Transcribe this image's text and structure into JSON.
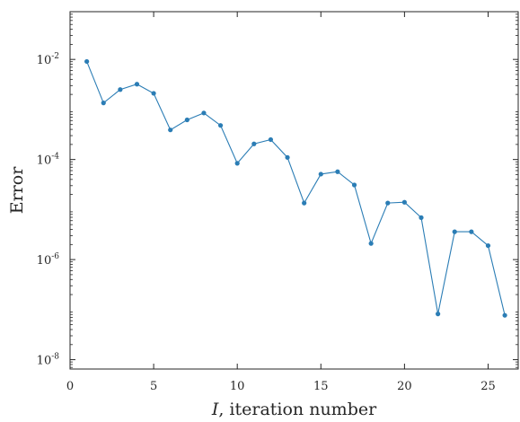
{
  "chart_data": {
    "type": "line",
    "xlabel_var": "I",
    "xlabel_rest": ", iteration number",
    "ylabel": "Error",
    "y_scale": "log",
    "xlim": [
      0,
      26.8
    ],
    "ylim": [
      6.5e-09,
      0.09
    ],
    "x_ticks": [
      0,
      5,
      10,
      15,
      20,
      25
    ],
    "x_tick_labels": [
      "0",
      "5",
      "10",
      "15",
      "20",
      "25"
    ],
    "y_ticks": [
      1e-08,
      1e-06,
      0.0001,
      0.01
    ],
    "y_tick_labels": [
      {
        "base": "10",
        "exp": "-8"
      },
      {
        "base": "10",
        "exp": "-6"
      },
      {
        "base": "10",
        "exp": "-4"
      },
      {
        "base": "10",
        "exp": "-2"
      }
    ],
    "grid": false,
    "color": "#2b7db5",
    "series": [
      {
        "x": [
          1,
          2,
          3,
          4,
          5,
          6,
          7,
          8,
          9,
          10,
          11,
          12,
          13,
          14,
          15,
          16,
          17,
          18,
          19,
          20,
          21,
          22,
          23,
          24,
          25,
          26
        ],
        "values": [
          0.0091,
          0.00135,
          0.0025,
          0.0032,
          0.0021,
          0.00039,
          0.00062,
          0.00085,
          0.00048,
          8.4e-05,
          0.000205,
          0.00025,
          0.00011,
          1.35e-05,
          5.1e-05,
          5.7e-05,
          3.1e-05,
          2.1e-06,
          1.35e-05,
          1.4e-05,
          6.9e-06,
          8.2e-08,
          3.6e-06,
          3.6e-06,
          1.9e-06,
          7.7e-08
        ]
      }
    ]
  }
}
